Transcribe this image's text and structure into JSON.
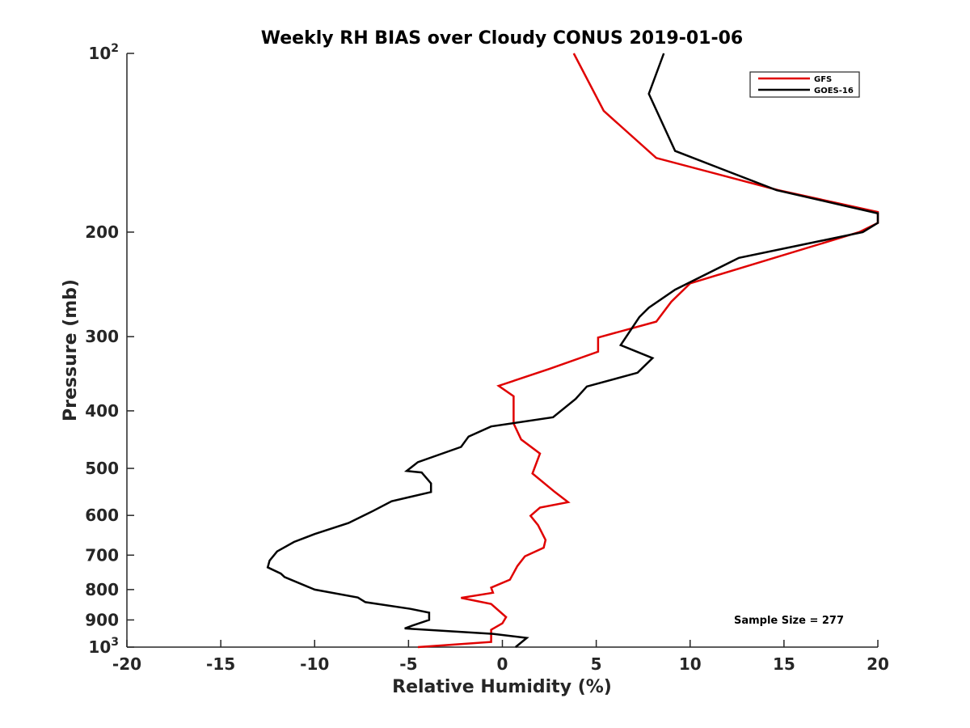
{
  "chart_data": {
    "type": "line",
    "title": "Weekly RH BIAS over Cloudy CONUS 2019-01-06",
    "xlabel": "Relative Humidity (%)",
    "ylabel": "Pressure (mb)",
    "xlim": [
      -20,
      20
    ],
    "ylim": [
      100,
      1000
    ],
    "yscale": "log",
    "y_reversed": true,
    "grid": false,
    "legend_position": "top-right",
    "x_ticks": [
      {
        "value": -20,
        "label": "-20"
      },
      {
        "value": -15,
        "label": "-15"
      },
      {
        "value": -10,
        "label": "-10"
      },
      {
        "value": -5,
        "label": "-5"
      },
      {
        "value": 0,
        "label": "0"
      },
      {
        "value": 5,
        "label": "5"
      },
      {
        "value": 10,
        "label": "10"
      },
      {
        "value": 15,
        "label": "15"
      },
      {
        "value": 20,
        "label": "20"
      }
    ],
    "y_ticks": [
      {
        "value": 100,
        "label": "10",
        "sup": "2"
      },
      {
        "value": 200,
        "label": "200"
      },
      {
        "value": 300,
        "label": "300"
      },
      {
        "value": 400,
        "label": "400"
      },
      {
        "value": 500,
        "label": "500"
      },
      {
        "value": 600,
        "label": "600"
      },
      {
        "value": 700,
        "label": "700"
      },
      {
        "value": 800,
        "label": "800"
      },
      {
        "value": 900,
        "label": "900"
      },
      {
        "value": 1000,
        "label": "10",
        "sup": "3"
      }
    ],
    "series": [
      {
        "name": "GFS",
        "color": "#e00000",
        "points": [
          [
            3.8,
            100
          ],
          [
            5.4,
            125
          ],
          [
            8.2,
            150
          ],
          [
            14.7,
            170
          ],
          [
            20,
            185
          ],
          [
            20,
            193
          ],
          [
            19,
            200
          ],
          [
            10,
            244
          ],
          [
            9.0,
            262
          ],
          [
            8.2,
            283
          ],
          [
            5.1,
            301
          ],
          [
            5.1,
            318
          ],
          [
            2.5,
            340
          ],
          [
            -0.2,
            363
          ],
          [
            0.6,
            378
          ],
          [
            0.6,
            420
          ],
          [
            1.0,
            447
          ],
          [
            2.0,
            472
          ],
          [
            1.6,
            510
          ],
          [
            2.8,
            548
          ],
          [
            3.5,
            570
          ],
          [
            2.0,
            582
          ],
          [
            1.5,
            601
          ],
          [
            1.9,
            623
          ],
          [
            2.3,
            660
          ],
          [
            2.2,
            680
          ],
          [
            1.2,
            703
          ],
          [
            0.8,
            730
          ],
          [
            0.4,
            770
          ],
          [
            -0.6,
            794
          ],
          [
            -0.5,
            810
          ],
          [
            -2.2,
            826
          ],
          [
            -0.6,
            846
          ],
          [
            0.2,
            890
          ],
          [
            0.0,
            912
          ],
          [
            -0.6,
            935
          ],
          [
            -0.6,
            980
          ],
          [
            -4.5,
            1000
          ]
        ]
      },
      {
        "name": "GOES-16",
        "color": "#000000",
        "points": [
          [
            8.6,
            100
          ],
          [
            7.8,
            117
          ],
          [
            9.2,
            146
          ],
          [
            14.6,
            170
          ],
          [
            20,
            186
          ],
          [
            20,
            193
          ],
          [
            19.2,
            200
          ],
          [
            12.6,
            221
          ],
          [
            9.2,
            250
          ],
          [
            7.8,
            268
          ],
          [
            7.3,
            278
          ],
          [
            6.3,
            310
          ],
          [
            8,
            326
          ],
          [
            7.2,
            345
          ],
          [
            4.5,
            364
          ],
          [
            3.9,
            382
          ],
          [
            2.7,
            410
          ],
          [
            -0.6,
            425
          ],
          [
            -1.8,
            442
          ],
          [
            -2.2,
            460
          ],
          [
            -4.5,
            488
          ],
          [
            -5.1,
            505
          ],
          [
            -4.3,
            508
          ],
          [
            -3.8,
            530
          ],
          [
            -3.8,
            548
          ],
          [
            -5.9,
            568
          ],
          [
            -6.9,
            590
          ],
          [
            -8.2,
            618
          ],
          [
            -10.0,
            645
          ],
          [
            -11.1,
            665
          ],
          [
            -12.0,
            690
          ],
          [
            -12.4,
            715
          ],
          [
            -12.5,
            734
          ],
          [
            -11.8,
            752
          ],
          [
            -11.6,
            762
          ],
          [
            -10.0,
            800
          ],
          [
            -7.7,
            825
          ],
          [
            -7.3,
            840
          ],
          [
            -4.9,
            862
          ],
          [
            -3.9,
            875
          ],
          [
            -3.9,
            900
          ],
          [
            -4.8,
            920
          ],
          [
            -5.2,
            930
          ],
          [
            -0.5,
            950
          ],
          [
            1.3,
            965
          ],
          [
            0.7,
            1000
          ]
        ]
      }
    ],
    "annotations": [
      {
        "text": "Sample Size = 277"
      }
    ]
  }
}
